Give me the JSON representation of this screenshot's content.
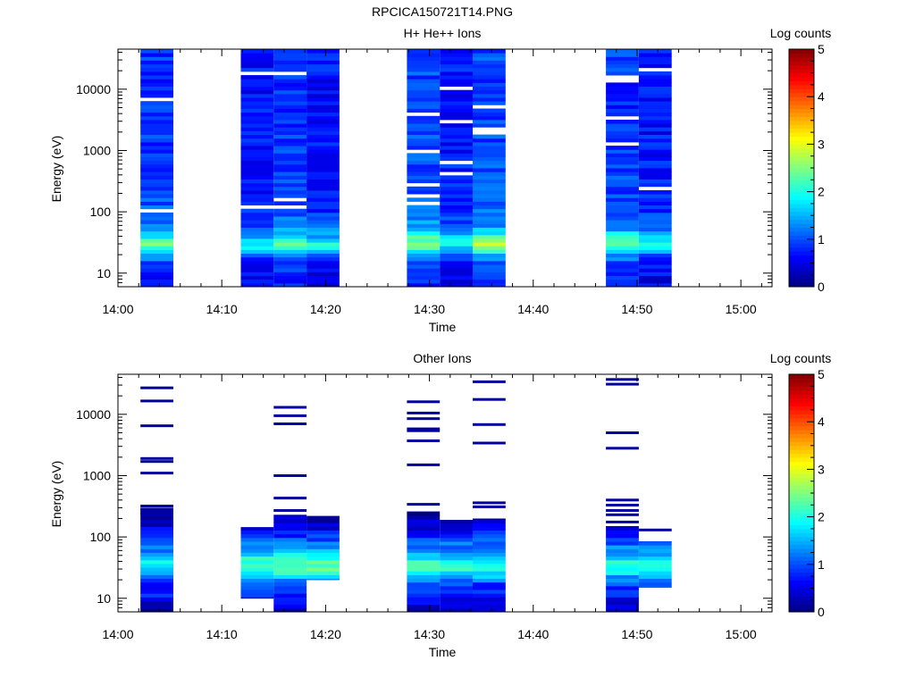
{
  "figure_title": "RPCICA150721T14.PNG",
  "colors": {
    "stops": [
      "#00007f",
      "#0000ff",
      "#007fff",
      "#00ffff",
      "#7fff7f",
      "#ffff00",
      "#ff7f00",
      "#ff0000",
      "#7f0000"
    ],
    "background": "#ffffff",
    "gap_line": "#ffffff"
  },
  "chart_data": [
    {
      "type": "heatmap",
      "title": "H+ He++ Ions",
      "xlabel": "Time",
      "ylabel": "Energy (eV)",
      "y_scale": "log",
      "xlim": [
        "14:00",
        "15:03"
      ],
      "ylim": [
        6,
        45000
      ],
      "x_ticks": [
        "14:00",
        "14:10",
        "14:20",
        "14:30",
        "14:40",
        "14:50",
        "15:00"
      ],
      "y_ticks": [
        "10",
        "100",
        "1000",
        "10000"
      ],
      "colorbar": {
        "label": "Log counts",
        "range": [
          0,
          5
        ],
        "ticks": [
          "0",
          "1",
          "2",
          "3",
          "4",
          "5"
        ]
      },
      "energy_profile": {
        "energies_eV": [
          9,
          14,
          20,
          25,
          30,
          35,
          40,
          48,
          60,
          75,
          100,
          150,
          300,
          1000,
          3000,
          10000,
          30000
        ],
        "log_counts": [
          0.7,
          0.9,
          1.3,
          2.0,
          2.3,
          2.1,
          1.8,
          1.5,
          1.2,
          1.1,
          1.0,
          0.95,
          0.9,
          0.85,
          0.8,
          0.8,
          0.85
        ]
      },
      "scans": [
        {
          "start": "14:02:10",
          "end": "14:05:20",
          "level": 1.0
        },
        {
          "start": "14:11:50",
          "end": "14:15:00",
          "level": 0.8
        },
        {
          "start": "14:15:00",
          "end": "14:18:10",
          "level": 1.0
        },
        {
          "start": "14:18:10",
          "end": "14:21:20",
          "level": 0.8
        },
        {
          "start": "14:27:50",
          "end": "14:31:00",
          "level": 1.1
        },
        {
          "start": "14:31:00",
          "end": "14:34:10",
          "level": 0.8
        },
        {
          "start": "14:34:10",
          "end": "14:37:20",
          "level": 1.1
        },
        {
          "start": "14:47:00",
          "end": "14:50:10",
          "level": 1.0
        },
        {
          "start": "14:50:10",
          "end": "14:53:20",
          "level": 0.8
        }
      ]
    },
    {
      "type": "heatmap",
      "title": "Other Ions",
      "xlabel": "Time",
      "ylabel": "Energy (eV)",
      "y_scale": "log",
      "xlim": [
        "14:00",
        "15:03"
      ],
      "ylim": [
        6,
        45000
      ],
      "x_ticks": [
        "14:00",
        "14:10",
        "14:20",
        "14:30",
        "14:40",
        "14:50",
        "15:00"
      ],
      "y_ticks": [
        "10",
        "100",
        "1000",
        "10000"
      ],
      "colorbar": {
        "label": "Log counts",
        "range": [
          0,
          5
        ],
        "ticks": [
          "0",
          "1",
          "2",
          "3",
          "4",
          "5"
        ]
      },
      "energy_profile": {
        "energies_eV": [
          8,
          12,
          17,
          22,
          27,
          33,
          40,
          48,
          58,
          70,
          85,
          100,
          130,
          180,
          250
        ],
        "log_counts": [
          0.4,
          0.9,
          0.95,
          1.5,
          2.0,
          2.3,
          2.1,
          1.8,
          1.5,
          1.3,
          1.1,
          0.9,
          0.6,
          0.3,
          0.2
        ]
      },
      "scans": [
        {
          "start": "14:02:10",
          "end": "14:05:20",
          "level": 0.8,
          "max_energy": 300,
          "lines_eV": [
            27000,
            16500,
            6500,
            1900,
            1700,
            1100,
            320,
            280,
            240
          ]
        },
        {
          "start": "14:11:50",
          "end": "14:15:00",
          "level": 1.0,
          "max_energy": 145,
          "min_energy": 10,
          "lines_eV": []
        },
        {
          "start": "14:15:00",
          "end": "14:18:10",
          "level": 1.0,
          "max_energy": 230,
          "lines_eV": [
            13000,
            9500,
            7000,
            1000,
            430,
            270
          ]
        },
        {
          "start": "14:18:10",
          "end": "14:21:20",
          "level": 1.0,
          "max_energy": 220,
          "min_energy": 20,
          "lines_eV": []
        },
        {
          "start": "14:27:50",
          "end": "14:31:00",
          "level": 0.9,
          "max_energy": 260,
          "lines_eV": [
            16000,
            10500,
            8500,
            5800,
            5400,
            3700,
            1500,
            340
          ]
        },
        {
          "start": "14:31:00",
          "end": "14:34:10",
          "level": 0.9,
          "max_energy": 190,
          "lines_eV": []
        },
        {
          "start": "14:34:10",
          "end": "14:37:20",
          "level": 0.9,
          "max_energy": 200,
          "lines_eV": [
            34000,
            17500,
            6800,
            3400,
            360,
            310
          ]
        },
        {
          "start": "14:47:00",
          "end": "14:50:10",
          "level": 0.9,
          "max_energy": 150,
          "lines_eV": [
            37000,
            31000,
            5000,
            2800,
            400,
            330,
            270,
            230,
            175
          ]
        },
        {
          "start": "14:50:10",
          "end": "14:53:20",
          "level": 0.9,
          "max_energy": 85,
          "min_energy": 15,
          "lines_eV": [
            130
          ]
        }
      ]
    }
  ]
}
